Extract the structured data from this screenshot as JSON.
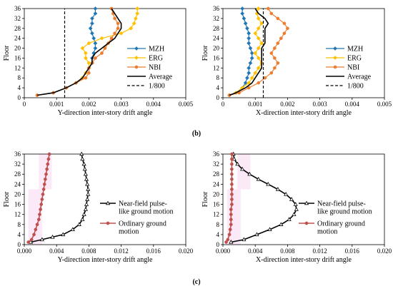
{
  "panel_labels": [
    "(b)",
    "(c)"
  ],
  "series_styles": {
    "MZH": {
      "color": "#1f77b4",
      "marker": "diamond"
    },
    "ERG": {
      "color": "#ffc000",
      "marker": "diamond"
    },
    "NBI": {
      "color": "#ed7d31",
      "marker": "circle"
    },
    "Average": {
      "color": "#000000"
    },
    "1/800": {
      "color": "#000000",
      "dash": true
    },
    "Near-field pulse-like ground motion": {
      "color": "#000000",
      "marker": "triangle"
    },
    "Ordinary ground motion": {
      "color": "#c0504d",
      "marker": "circle"
    }
  },
  "chart_data": [
    {
      "type": "line",
      "xlabel": "Y-direction inter-story drift angle",
      "ylabel": "Floor",
      "xlim": [
        0,
        0.005
      ],
      "ylim": [
        0,
        36
      ],
      "xticks": [
        "0",
        "0.001",
        "0.002",
        "0.003",
        "0.004",
        "0.005"
      ],
      "yticks": [
        "0",
        "4",
        "8",
        "12",
        "16",
        "20",
        "24",
        "28",
        "32",
        "36"
      ],
      "legend": "right",
      "legend_entries": [
        "MZH",
        "ERG",
        "NBI",
        "Average",
        "1/800"
      ],
      "series": [
        {
          "name": "MZH",
          "x": [
            0.0004,
            0.0009,
            0.0013,
            0.0016,
            0.0018,
            0.0019,
            0.002,
            0.0021,
            0.0021,
            0.00215,
            0.0022,
            0.0022,
            0.00215,
            0.0021,
            0.00205,
            0.0021,
            0.0021,
            0.0022,
            0.0022
          ],
          "y": [
            1,
            2,
            4,
            6,
            8,
            10,
            12,
            14,
            16,
            18,
            20,
            22,
            24,
            26,
            28,
            30,
            32,
            34,
            36
          ]
        },
        {
          "name": "ERG",
          "x": [
            0.0004,
            0.0009,
            0.0013,
            0.0016,
            0.0018,
            0.0019,
            0.002,
            0.002,
            0.0019,
            0.0019,
            0.0018,
            0.002,
            0.0024,
            0.003,
            0.0033,
            0.0034,
            0.00345,
            0.0035,
            0.0035
          ],
          "y": [
            1,
            2,
            4,
            6,
            8,
            10,
            12,
            14,
            16,
            18,
            20,
            22,
            24,
            26,
            28,
            30,
            32,
            34,
            36
          ]
        },
        {
          "name": "NBI",
          "x": [
            0.0004,
            0.0009,
            0.0013,
            0.0016,
            0.0019,
            0.002,
            0.002,
            0.0021,
            0.0022,
            0.0024,
            0.0025,
            0.0026,
            0.0027,
            0.0028,
            0.0029,
            0.0029,
            0.0028,
            0.00275,
            0.0027
          ],
          "y": [
            1,
            2,
            4,
            6,
            8,
            10,
            12,
            14,
            16,
            18,
            20,
            22,
            24,
            26,
            28,
            30,
            32,
            34,
            36
          ]
        },
        {
          "name": "Average",
          "x": [
            0.0004,
            0.0009,
            0.0013,
            0.0016,
            0.0018,
            0.0019,
            0.002,
            0.0021,
            0.0021,
            0.0022,
            0.0024,
            0.0026,
            0.0028,
            0.0029,
            0.003,
            0.003,
            0.0029,
            0.0028,
            0.0027
          ],
          "y": [
            1,
            2,
            4,
            6,
            8,
            10,
            12,
            14,
            16,
            18,
            20,
            22,
            24,
            26,
            28,
            30,
            32,
            34,
            36
          ]
        },
        {
          "name": "1/800",
          "x": [
            0.00125,
            0.00125
          ],
          "y": [
            0,
            36
          ]
        }
      ]
    },
    {
      "type": "line",
      "xlabel": "X-direction inter-story drift angle",
      "ylabel": "Floor",
      "xlim": [
        0,
        0.005
      ],
      "ylim": [
        0,
        36
      ],
      "xticks": [
        "0",
        "0.001",
        "0.002",
        "0.003",
        "0.004",
        "0.005"
      ],
      "yticks": [
        "0",
        "4",
        "8",
        "12",
        "16",
        "20",
        "24",
        "28",
        "32",
        "36"
      ],
      "legend": "right",
      "legend_entries": [
        "MZH",
        "ERG",
        "NBI",
        "Average",
        "1/800"
      ],
      "series": [
        {
          "name": "MZH",
          "x": [
            0.0002,
            0.0004,
            0.0006,
            0.0007,
            0.00075,
            0.0008,
            0.0008,
            0.00085,
            0.0009,
            0.0009,
            0.00085,
            0.0008,
            0.0008,
            0.0008,
            0.00075,
            0.0007,
            0.00065,
            0.0006,
            0.0006
          ],
          "y": [
            1,
            2,
            4,
            6,
            8,
            10,
            12,
            14,
            16,
            18,
            20,
            22,
            24,
            26,
            28,
            30,
            32,
            34,
            36
          ]
        },
        {
          "name": "ERG",
          "x": [
            0.0002,
            0.0004,
            0.0006,
            0.0008,
            0.0009,
            0.001,
            0.0011,
            0.0012,
            0.0011,
            0.001,
            0.0011,
            0.0012,
            0.0011,
            0.001,
            0.0011,
            0.0012,
            0.0011,
            0.00105,
            0.0011
          ],
          "y": [
            1,
            2,
            4,
            6,
            8,
            10,
            12,
            14,
            16,
            18,
            20,
            22,
            24,
            26,
            28,
            30,
            32,
            34,
            36
          ]
        },
        {
          "name": "NBI",
          "x": [
            0.0002,
            0.0005,
            0.0008,
            0.0011,
            0.0013,
            0.0015,
            0.0016,
            0.0017,
            0.0016,
            0.0015,
            0.0016,
            0.0017,
            0.0018,
            0.0019,
            0.002,
            0.0019,
            0.0017,
            0.0015,
            0.0014
          ],
          "y": [
            1,
            2,
            4,
            6,
            8,
            10,
            12,
            14,
            16,
            18,
            20,
            22,
            24,
            26,
            28,
            30,
            32,
            34,
            36
          ]
        },
        {
          "name": "Average",
          "x": [
            0.0002,
            0.0004,
            0.0007,
            0.0009,
            0.001,
            0.0011,
            0.0012,
            0.0012,
            0.0012,
            0.0012,
            0.0012,
            0.0013,
            0.0013,
            0.0013,
            0.0013,
            0.0014,
            0.0013,
            0.0011,
            0.001
          ],
          "y": [
            1,
            2,
            4,
            6,
            8,
            10,
            12,
            14,
            16,
            18,
            20,
            22,
            24,
            26,
            28,
            30,
            32,
            34,
            36
          ]
        },
        {
          "name": "1/800",
          "x": [
            0.00125,
            0.00125
          ],
          "y": [
            0,
            36
          ]
        }
      ]
    },
    {
      "type": "line",
      "xlabel": "Y-direction inter-story drift angle",
      "ylabel": "Floor",
      "xlim": [
        0,
        0.02
      ],
      "ylim": [
        0,
        36
      ],
      "xticks": [
        "0.000",
        "0.004",
        "0.008",
        "0.012",
        "0.016",
        "0.020"
      ],
      "yticks": [
        "0",
        "4",
        "8",
        "12",
        "16",
        "20",
        "24",
        "28",
        "32",
        "36"
      ],
      "legend": "right",
      "legend_entries": [
        "Near-field pulse-like ground motion",
        "Ordinary ground motion"
      ],
      "series": [
        {
          "name": "Near-field pulse-like ground motion",
          "x": [
            0.0008,
            0.0022,
            0.0035,
            0.0048,
            0.006,
            0.0068,
            0.0072,
            0.0074,
            0.0076,
            0.0077,
            0.0078,
            0.0079,
            0.0079,
            0.0078,
            0.0077,
            0.0076,
            0.0075,
            0.0074,
            0.0072,
            0.0071
          ],
          "y": [
            1,
            2,
            3,
            4,
            6,
            8,
            10,
            12,
            14,
            16,
            18,
            20,
            22,
            24,
            26,
            28,
            30,
            32,
            34,
            36
          ]
        },
        {
          "name": "Ordinary ground motion",
          "x": [
            0.0005,
            0.0009,
            0.0012,
            0.0014,
            0.0016,
            0.0018,
            0.0019,
            0.002,
            0.0021,
            0.0022,
            0.0023,
            0.0024,
            0.0025,
            0.0026,
            0.0027,
            0.0028,
            0.0029,
            0.003,
            0.0031
          ],
          "y": [
            1,
            2,
            4,
            6,
            8,
            10,
            12,
            14,
            16,
            18,
            20,
            22,
            24,
            26,
            28,
            30,
            32,
            34,
            36
          ]
        }
      ]
    },
    {
      "type": "line",
      "xlabel": "X-direction inter-story drift angle",
      "ylabel": "Floor",
      "xlim": [
        0,
        0.02
      ],
      "ylim": [
        0,
        36
      ],
      "xticks": [
        "0.000",
        "0.004",
        "0.008",
        "0.012",
        "0.016",
        "0.020"
      ],
      "yticks": [
        "0",
        "4",
        "8",
        "12",
        "16",
        "20",
        "24",
        "28",
        "32",
        "36"
      ],
      "legend": "right",
      "legend_entries": [
        "Near-field pulse-like ground motion",
        "Ordinary ground motion"
      ],
      "series": [
        {
          "name": "Near-field pulse-like ground motion",
          "x": [
            0.001,
            0.0026,
            0.0042,
            0.0058,
            0.0072,
            0.0082,
            0.0088,
            0.0091,
            0.009,
            0.0085,
            0.0078,
            0.0068,
            0.0056,
            0.0044,
            0.0033,
            0.0024,
            0.0018,
            0.0014,
            0.0013
          ],
          "y": [
            1,
            2,
            4,
            6,
            8,
            10,
            12,
            14,
            16,
            18,
            20,
            22,
            24,
            26,
            28,
            30,
            32,
            34,
            36
          ]
        },
        {
          "name": "Ordinary ground motion",
          "x": [
            0.0004,
            0.0006,
            0.0008,
            0.0009,
            0.001,
            0.001,
            0.001,
            0.001,
            0.0011,
            0.0011,
            0.0011,
            0.0011,
            0.0011,
            0.0011,
            0.0011,
            0.0011,
            0.0011,
            0.0011,
            0.0011
          ],
          "y": [
            1,
            2,
            4,
            6,
            8,
            10,
            12,
            14,
            16,
            18,
            20,
            22,
            24,
            26,
            28,
            30,
            32,
            34,
            36
          ]
        }
      ]
    }
  ]
}
